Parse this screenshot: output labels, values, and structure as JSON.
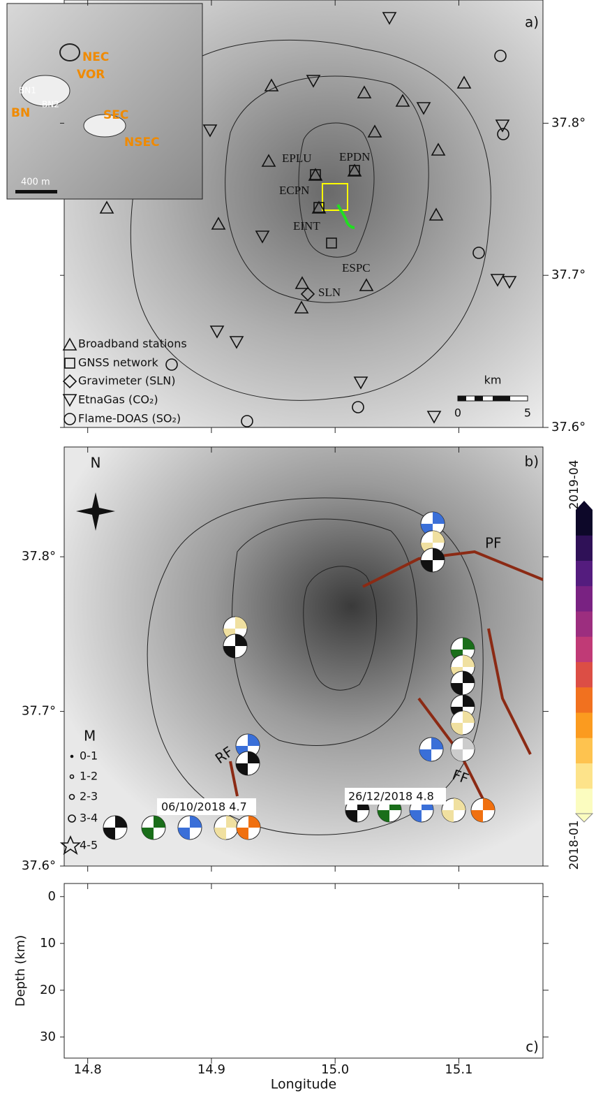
{
  "panel_a": {
    "label": "a)",
    "inset": {
      "labels": [
        "NEC",
        "VOR",
        "BN",
        "SEC",
        "NSEC",
        "BN1",
        "BN2"
      ],
      "scale": "400 m"
    },
    "stations": [
      "EPLU",
      "EPDN",
      "ECPN",
      "EINT",
      "ESPC",
      "SLN"
    ],
    "legend": [
      "Broadband stations",
      "GNSS network",
      "Gravimeter (SLN)",
      "EtnaGas (CO₂)",
      "Flame-DOAS (SO₂)"
    ],
    "scale_bar": {
      "unit": "km",
      "ticks": [
        0,
        5
      ]
    },
    "ylim": [
      37.6,
      37.881
    ],
    "yticks": [
      {
        "value": 37.6,
        "label": "37.6°"
      },
      {
        "value": 37.7,
        "label": "37.7°"
      },
      {
        "value": 37.8,
        "label": "37.8°"
      }
    ]
  },
  "panel_b": {
    "label": "b)",
    "north": "N",
    "magnitude_legend": {
      "title": "M",
      "entries": [
        "0-1",
        "1-2",
        "2-3",
        "3-4",
        "4-5"
      ]
    },
    "events": [
      "06/10/2018 4.7",
      "26/12/2018 4.8"
    ],
    "faults": [
      "PF",
      "RF",
      "FF"
    ],
    "ylim": [
      37.6,
      37.871
    ],
    "yticks": [
      {
        "value": 37.6,
        "label": "37.6°"
      },
      {
        "value": 37.7,
        "label": "37.7°"
      },
      {
        "value": 37.8,
        "label": "37.8°"
      }
    ]
  },
  "panel_c": {
    "label": "c)",
    "ylabel": "Depth (km)",
    "xlabel": "Longitude",
    "ylim": [
      -2.8,
      34.5
    ],
    "yticks": [
      0,
      10,
      20,
      30
    ],
    "xlim": [
      14.781,
      15.168
    ],
    "xticks": [
      14.8,
      14.9,
      {
        "value": 15,
        "label": "15.0"
      },
      15.1
    ]
  },
  "colorbar": {
    "max_label": "2019-04",
    "min_label": "2018-01",
    "colors": [
      "#fbfcbf",
      "#fde38a",
      "#fec34f",
      "#fb9b1f",
      "#f1711f",
      "#dc4e45",
      "#c03a76",
      "#9c2e7f",
      "#792282",
      "#541c7e",
      "#2f1157",
      "#0d0829"
    ]
  }
}
